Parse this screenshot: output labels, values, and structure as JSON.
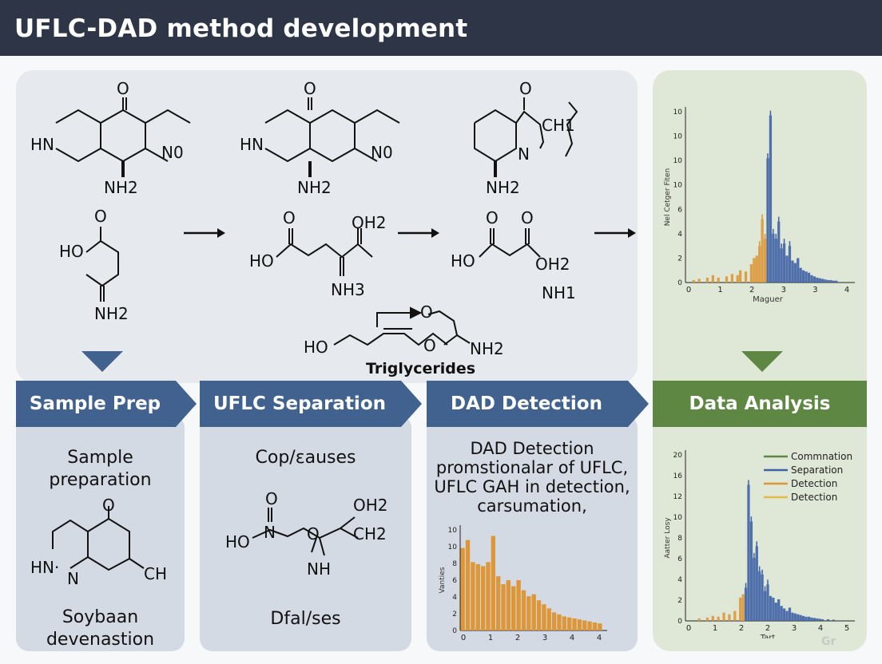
{
  "header": {
    "title": "UFLC-DAD method development"
  },
  "top_row": {
    "molecules": [
      {
        "labels": [
          "O",
          "HN",
          "N0",
          "NH2"
        ]
      },
      {
        "labels": [
          "O",
          "HN",
          "N0",
          "NH2"
        ]
      },
      {
        "labels": [
          "O",
          "CH1",
          "N",
          "NH2"
        ]
      }
    ],
    "reactions": [
      {
        "labels": [
          "O",
          "HO",
          "NH2"
        ]
      },
      {
        "labels": [
          "O",
          "OH2",
          "HO",
          "NH3"
        ]
      },
      {
        "labels": [
          "O",
          "O",
          "HO",
          "OH2",
          "NH1"
        ]
      }
    ],
    "triglyceride": {
      "labels": [
        "O",
        "O",
        "HO",
        "NH2"
      ],
      "caption": "Triglycerides"
    }
  },
  "steps": [
    {
      "label": "Sample Prep",
      "color": "#41618f"
    },
    {
      "label": "UFLC Separation",
      "color": "#41618f"
    },
    {
      "label": "DAD Detection",
      "color": "#41618f"
    },
    {
      "label": "Data Analysis",
      "color": "#5e8744"
    }
  ],
  "columns": {
    "sample": {
      "title_lines": [
        "Sample",
        "preparation"
      ],
      "mol_labels": [
        "O",
        "HN·",
        "N",
        "CH"
      ],
      "footer_lines": [
        "Soybaan",
        "devenastion"
      ]
    },
    "separation": {
      "title_lines": [
        "Cop/εauses"
      ],
      "mol_labels": [
        "O",
        "N",
        "OH2",
        "HO",
        "O",
        "CH2",
        "NH"
      ],
      "footer_lines": [
        "Dfal/ses"
      ]
    },
    "detection": {
      "title_lines": [
        "DAD Detection",
        "promstionalar of UFLC,",
        "UFLC GAH in detection,",
        "carsumation,"
      ]
    }
  },
  "colors": {
    "orange": "#dd9739",
    "blue": "#3f62a5",
    "green": "#5e8744"
  },
  "chart_data": [
    {
      "id": "top-right",
      "type": "bar",
      "ylabel": "Nel Cetger Fiten",
      "xlabel": "Maguer",
      "xlim": [
        0,
        6
      ],
      "ylim": [
        0,
        14
      ],
      "y_tick_labels": [
        "0",
        "2",
        "4",
        "6",
        "10",
        "10",
        "10",
        "10"
      ],
      "x_tick_labels": [
        "0",
        "1",
        "2",
        "3",
        "3",
        "4"
      ],
      "series": [
        {
          "values": [
            [
              0.3,
              0.2
            ],
            [
              0.5,
              0.3
            ],
            [
              0.8,
              0.4
            ],
            [
              1.0,
              0.6
            ],
            [
              1.2,
              0.4
            ],
            [
              1.5,
              0.5
            ],
            [
              1.7,
              0.7
            ],
            [
              1.9,
              0.6
            ],
            [
              2.0,
              1.0
            ],
            [
              2.2,
              0.9
            ],
            [
              2.4,
              1.5
            ],
            [
              2.5,
              2.0
            ],
            [
              2.6,
              2.2
            ],
            [
              2.7,
              3.0
            ],
            [
              2.8,
              5.2
            ],
            [
              2.9,
              3.6
            ]
          ]
        },
        {
          "values": [
            [
              3.0,
              10.2
            ],
            [
              3.1,
              13.7
            ],
            [
              3.2,
              4.0
            ],
            [
              3.3,
              3.6
            ],
            [
              3.4,
              5.0
            ],
            [
              3.5,
              2.8
            ],
            [
              3.6,
              3.2
            ],
            [
              3.7,
              2.2
            ],
            [
              3.8,
              3.0
            ],
            [
              3.9,
              1.8
            ],
            [
              4.0,
              1.6
            ],
            [
              4.1,
              2.0
            ],
            [
              4.2,
              1.2
            ],
            [
              4.3,
              1.0
            ],
            [
              4.4,
              0.9
            ],
            [
              4.5,
              0.8
            ],
            [
              4.6,
              0.6
            ],
            [
              4.7,
              0.5
            ],
            [
              4.8,
              0.4
            ],
            [
              4.9,
              0.35
            ],
            [
              5.0,
              0.3
            ],
            [
              5.1,
              0.25
            ],
            [
              5.2,
              0.2
            ],
            [
              5.3,
              0.2
            ],
            [
              5.4,
              0.15
            ],
            [
              5.5,
              0.15
            ]
          ]
        }
      ]
    },
    {
      "id": "mid",
      "type": "bar",
      "ylabel": "Vanties",
      "xlim": [
        0,
        4.5
      ],
      "ylim": [
        0,
        10
      ],
      "y_tick_labels": [
        "0",
        "2",
        "4",
        "6",
        "8",
        "10",
        "10"
      ],
      "x_tick_labels": [
        "0",
        "1",
        "2",
        "3",
        "4",
        "4"
      ],
      "values": [
        8.2,
        9.0,
        6.8,
        6.6,
        6.4,
        6.8,
        9.4,
        5.4,
        4.6,
        5.0,
        4.4,
        5.0,
        4.0,
        3.4,
        3.6,
        3.0,
        2.6,
        2.2,
        1.8,
        1.6,
        1.4,
        1.3,
        1.2,
        1.1,
        1.0,
        0.9,
        0.8,
        0.7
      ]
    },
    {
      "id": "bottom-right",
      "type": "bar",
      "ylabel": "Aatter Losy",
      "xlabel": "Tart",
      "xlim": [
        0,
        6
      ],
      "ylim": [
        0,
        20
      ],
      "y_tick_labels": [
        "0",
        "2",
        "4",
        "6",
        "8",
        "10",
        "12",
        "16",
        "20"
      ],
      "x_tick_labels": [
        "0",
        "1",
        "2",
        "2",
        "3",
        "4",
        "5"
      ],
      "legend": [
        "Commnation",
        "Separation",
        "Detection",
        "Detection"
      ],
      "legend_colors": [
        "#5e8744",
        "#3f62a5",
        "#dd9739",
        "#e6b84a"
      ],
      "series": [
        {
          "values": [
            [
              0.5,
              0.3
            ],
            [
              0.8,
              0.4
            ],
            [
              1.0,
              0.6
            ],
            [
              1.2,
              0.5
            ],
            [
              1.4,
              1.0
            ],
            [
              1.6,
              0.8
            ],
            [
              1.8,
              1.2
            ],
            [
              2.0,
              2.8
            ],
            [
              2.1,
              3.2
            ]
          ]
        },
        {
          "values": [
            [
              2.2,
              4.0
            ],
            [
              2.3,
              16.4
            ],
            [
              2.4,
              12.0
            ],
            [
              2.5,
              7.6
            ],
            [
              2.6,
              9.0
            ],
            [
              2.7,
              6.0
            ],
            [
              2.8,
              5.6
            ],
            [
              2.9,
              3.6
            ],
            [
              3.0,
              4.4
            ],
            [
              3.1,
              3.0
            ],
            [
              3.2,
              2.8
            ],
            [
              3.3,
              2.2
            ],
            [
              3.4,
              2.6
            ],
            [
              3.5,
              1.8
            ],
            [
              3.6,
              1.5
            ],
            [
              3.7,
              1.2
            ],
            [
              3.8,
              1.6
            ],
            [
              3.9,
              1.0
            ],
            [
              4.0,
              0.9
            ],
            [
              4.1,
              0.8
            ],
            [
              4.2,
              0.7
            ],
            [
              4.3,
              0.6
            ],
            [
              4.4,
              0.5
            ],
            [
              4.5,
              0.5
            ],
            [
              4.6,
              0.4
            ],
            [
              4.7,
              0.35
            ],
            [
              4.8,
              0.3
            ],
            [
              4.9,
              0.25
            ],
            [
              5.0,
              0.2
            ],
            [
              5.2,
              0.2
            ],
            [
              5.4,
              0.15
            ]
          ]
        }
      ]
    }
  ],
  "watermark": "Gr"
}
